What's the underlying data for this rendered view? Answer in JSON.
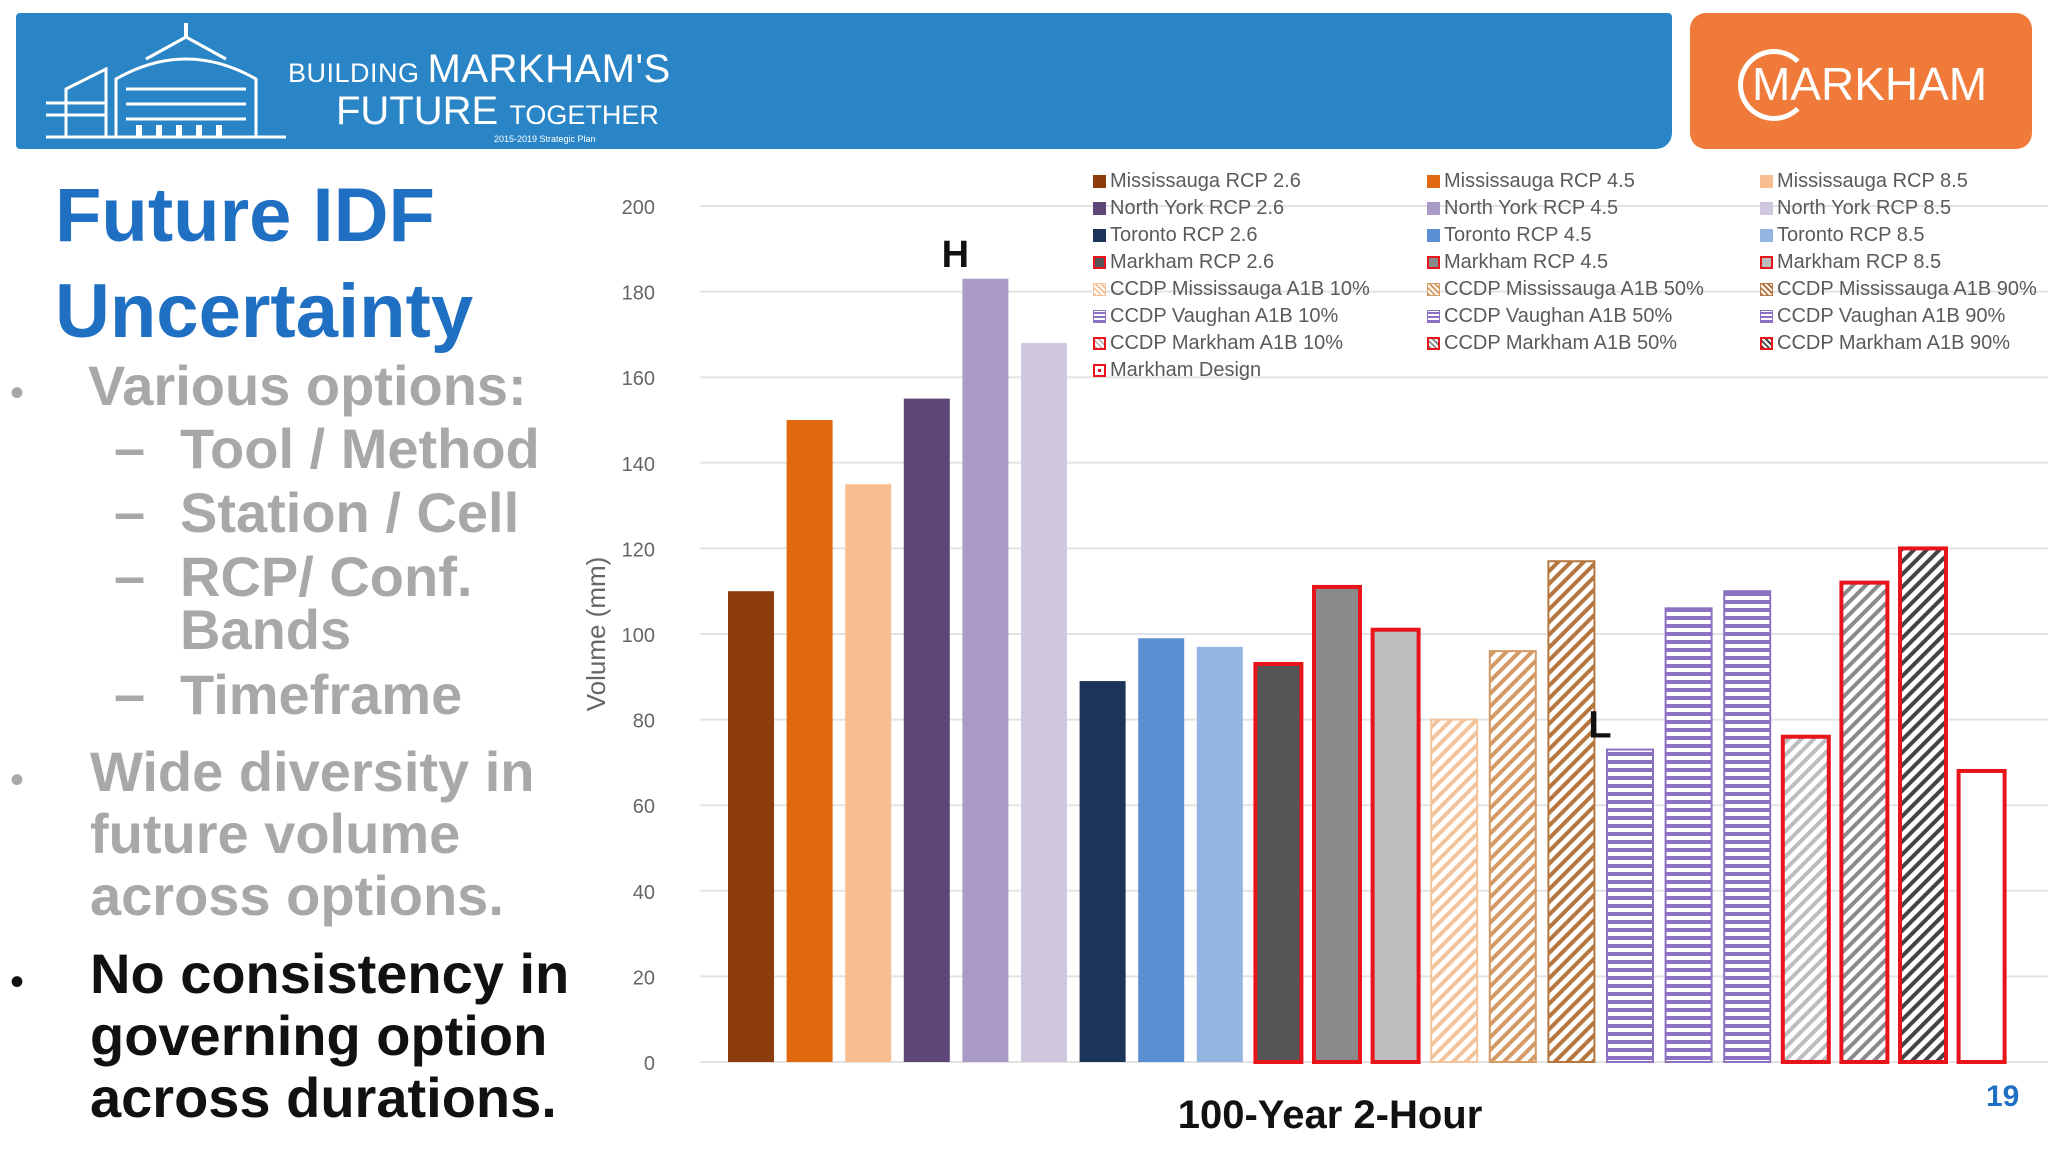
{
  "header": {
    "logo_line1_small": "BUILDING",
    "logo_line1_big": "MARKHAM'S",
    "logo_line2_big": "FUTURE",
    "logo_line2_small": "TOGETHER",
    "logo_plan": "2015-2019 Strategic Plan",
    "brand": "MARKHAM",
    "accent_color": "#2a85c6",
    "brand_color": "#f07a3a"
  },
  "slide": {
    "title_line1": "Future IDF",
    "title_line2": "Uncertainty",
    "bullet1": "Various options:",
    "sub1": "Tool / Method",
    "sub2": "Station / Cell",
    "sub3_line1": "RCP/ Conf.",
    "sub3_line2": "Bands",
    "sub4": "Timeframe",
    "bullet2_line1": "Wide diversity in",
    "bullet2_line2": "future volume",
    "bullet2_line3": "across options.",
    "bullet3_line1": "No consistency in",
    "bullet3_line2": "governing option",
    "bullet3_line3": "across durations.",
    "bullet_char": "•",
    "dash_char": "–",
    "page_number": "19"
  },
  "chart_data": {
    "type": "bar",
    "title": "",
    "xlabel": "100-Year 2-Hour",
    "ylabel": "Volume (mm)",
    "ylim": [
      0,
      200
    ],
    "yticks": [
      0,
      20,
      40,
      60,
      80,
      100,
      120,
      140,
      160,
      180,
      200
    ],
    "grid": true,
    "legend_position": "top-right",
    "annotations": [
      {
        "text": "H",
        "series_index": 4
      },
      {
        "text": "L",
        "series_index": 15
      }
    ],
    "series": [
      {
        "name": "Mississauga RCP 2.6",
        "value": 110,
        "color": "#8c3d0b",
        "pattern": "solid"
      },
      {
        "name": "Mississauga RCP 4.5",
        "value": 150,
        "color": "#e0690f",
        "pattern": "solid"
      },
      {
        "name": "Mississauga RCP 8.5",
        "value": 135,
        "color": "#f8be90",
        "pattern": "solid"
      },
      {
        "name": "North York RCP 2.6",
        "value": 155,
        "color": "#5e4778",
        "pattern": "solid"
      },
      {
        "name": "North York RCP 4.5",
        "value": 183,
        "color": "#a99ac6",
        "pattern": "solid"
      },
      {
        "name": "North York RCP 8.5",
        "value": 168,
        "color": "#cfc6e0",
        "pattern": "solid"
      },
      {
        "name": "Toronto RCP 2.6",
        "value": 89,
        "color": "#1c3458",
        "pattern": "solid"
      },
      {
        "name": "Toronto RCP 4.5",
        "value": 99,
        "color": "#5a8fd2",
        "pattern": "solid"
      },
      {
        "name": "Toronto RCP 8.5",
        "value": 97,
        "color": "#93b5e2",
        "pattern": "solid"
      },
      {
        "name": "Markham RCP 2.6",
        "value": 93,
        "color": "#555555",
        "pattern": "solid-red"
      },
      {
        "name": "Markham RCP 4.5",
        "value": 111,
        "color": "#8a8a8a",
        "pattern": "solid-red"
      },
      {
        "name": "Markham RCP 8.5",
        "value": 101,
        "color": "#bdbdbd",
        "pattern": "solid-red"
      },
      {
        "name": "CCDP Mississauga A1B 10%",
        "value": 80,
        "color": "#f3c49c",
        "pattern": "diag"
      },
      {
        "name": "CCDP Mississauga A1B 50%",
        "value": 96,
        "color": "#d49a66",
        "pattern": "diag"
      },
      {
        "name": "CCDP Mississauga A1B 90%",
        "value": 117,
        "color": "#b5773f",
        "pattern": "diag"
      },
      {
        "name": "CCDP Vaughan A1B 10%",
        "value": 73,
        "color": "#8d72c4",
        "pattern": "horiz"
      },
      {
        "name": "CCDP Vaughan A1B 50%",
        "value": 106,
        "color": "#8d72c4",
        "pattern": "horiz"
      },
      {
        "name": "CCDP Vaughan A1B 90%",
        "value": 110,
        "color": "#8d72c4",
        "pattern": "horiz"
      },
      {
        "name": "CCDP Markham A1B 10%",
        "value": 76,
        "color": "#bdbdbd",
        "pattern": "diag-red"
      },
      {
        "name": "CCDP Markham A1B 50%",
        "value": 112,
        "color": "#8a8a8a",
        "pattern": "diag-red"
      },
      {
        "name": "CCDP Markham A1B 90%",
        "value": 120,
        "color": "#444444",
        "pattern": "diag-red"
      },
      {
        "name": "Markham Design",
        "value": 68,
        "color": "#ffffff",
        "pattern": "outline-red"
      }
    ],
    "legend_order": [
      [
        0,
        3,
        6,
        9,
        12,
        15,
        18,
        21
      ],
      [
        1,
        4,
        7,
        10,
        13,
        16,
        19
      ],
      [
        2,
        5,
        8,
        11,
        14,
        17,
        20
      ]
    ]
  }
}
